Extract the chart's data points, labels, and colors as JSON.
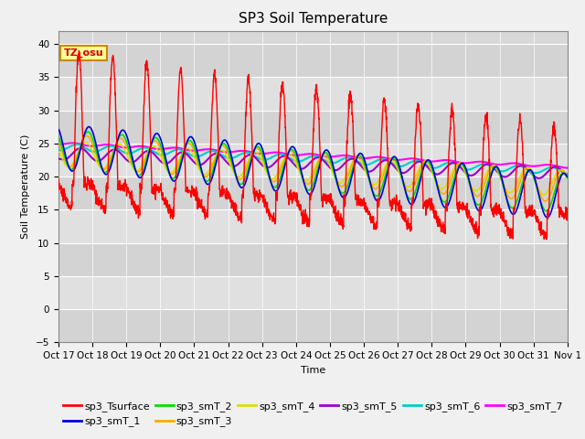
{
  "title": "SP3 Soil Temperature",
  "ylabel": "Soil Temperature (C)",
  "xlabel": "Time",
  "annotation": "TZ_osu",
  "ylim": [
    -5,
    42
  ],
  "yticks": [
    -5,
    0,
    5,
    10,
    15,
    20,
    25,
    30,
    35,
    40
  ],
  "xtick_labels": [
    "Oct 17",
    "Oct 18",
    "Oct 19",
    "Oct 20",
    "Oct 21",
    "Oct 22",
    "Oct 23",
    "Oct 24",
    "Oct 25",
    "Oct 26",
    "Oct 27",
    "Oct 28",
    "Oct 29",
    "Oct 30",
    "Oct 31",
    "Nov 1"
  ],
  "n_days": 15,
  "background_color": "#f0f0f0",
  "plot_bg_color": "#e8e8e8",
  "series_colors": {
    "sp3_Tsurface": "#ff0000",
    "sp3_smT_1": "#0000dd",
    "sp3_smT_2": "#00dd00",
    "sp3_smT_3": "#ffaa00",
    "sp3_smT_4": "#dddd00",
    "sp3_smT_5": "#9900cc",
    "sp3_smT_6": "#00cccc",
    "sp3_smT_7": "#ff00ff"
  },
  "title_fontsize": 11,
  "legend_fontsize": 8,
  "axis_fontsize": 8,
  "tick_fontsize": 7.5
}
